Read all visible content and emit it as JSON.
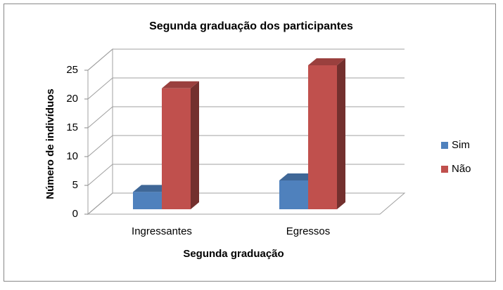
{
  "chart_data": {
    "type": "bar3d",
    "title": "Segunda graduação dos participantes",
    "x_label": "Segunda graduação",
    "y_label": "Número de indivíduos",
    "categories": [
      "Ingressantes",
      "Egressos"
    ],
    "series": [
      {
        "name": "Sim",
        "color": "#4f81bd",
        "values": [
          3,
          5
        ]
      },
      {
        "name": "Não",
        "color": "#c0504d",
        "values": [
          21,
          25
        ]
      }
    ],
    "ylim": [
      0,
      25
    ],
    "yticks": [
      0,
      5,
      10,
      15,
      20,
      25
    ],
    "grid": true,
    "legend": "right"
  }
}
